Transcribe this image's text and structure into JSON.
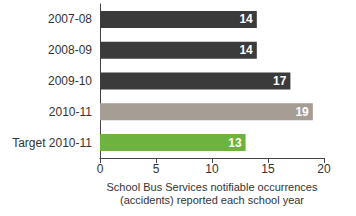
{
  "chart_data": {
    "type": "bar",
    "orientation": "horizontal",
    "categories": [
      "2007-08",
      "2008-09",
      "2009-10",
      "2010-11",
      "Target 2010-11"
    ],
    "values": [
      14,
      14,
      17,
      19,
      13
    ],
    "colors": [
      "#3b3b3b",
      "#3b3b3b",
      "#3b3b3b",
      "#a69d95",
      "#6cb33f"
    ],
    "xlabel": "School Bus Services notifiable occurrences\n(accidents) reported each school year",
    "xlim": [
      0,
      20
    ],
    "xticks": [
      0,
      5,
      10,
      15,
      20
    ],
    "grid": false,
    "data_labels": true
  }
}
